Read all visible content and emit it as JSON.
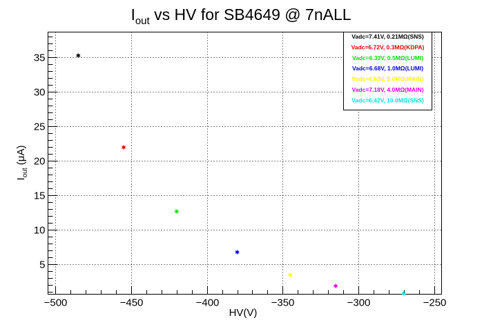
{
  "chart_data": {
    "type": "scatter",
    "title": {
      "main": "I",
      "sub": "out",
      "rest": " vs HV for SB4649 @ 7nALL"
    },
    "xlabel": "HV(V)",
    "ylabel": {
      "main": "I",
      "sub": "out",
      "rest": " (μA)"
    },
    "xlim": [
      -505,
      -245
    ],
    "ylim": [
      0.6,
      38.6
    ],
    "x_ticks": [
      -500,
      -450,
      -400,
      -350,
      -300,
      -250
    ],
    "x_tick_labels": [
      "−500",
      "−450",
      "−400",
      "−350",
      "−300",
      "−250"
    ],
    "y_ticks": [
      5,
      10,
      15,
      20,
      25,
      30,
      35
    ],
    "y_tick_labels": [
      "5",
      "10",
      "15",
      "20",
      "25",
      "30",
      "35"
    ],
    "grid": true,
    "legend_position": "top-right",
    "series": [
      {
        "name": "Vadc=7.41V, 0.21MΩ(SNS)",
        "color": "#000000",
        "x": [
          -485
        ],
        "y": [
          35.2
        ]
      },
      {
        "name": "Vadc=6.72V, 0.3MΩ(KDPA)",
        "color": "#e00000",
        "x": [
          -455
        ],
        "y": [
          21.9
        ]
      },
      {
        "name": "Vadc=6.33V, 0.5MΩ(LUMI)",
        "color": "#00e000",
        "x": [
          -420
        ],
        "y": [
          12.6
        ]
      },
      {
        "name": "Vadc=6.68V, 1.0MΩ(LUMI)",
        "color": "#0000e0",
        "x": [
          -380
        ],
        "y": [
          6.7
        ]
      },
      {
        "name": "Vadc=6.63V, 2.0MΩ(MAIN)",
        "color": "#ffff00",
        "x": [
          -345
        ],
        "y": [
          3.4
        ]
      },
      {
        "name": "Vadc=7.18V, 4.0MΩ(MAIN)",
        "color": "#e000e0",
        "x": [
          -315
        ],
        "y": [
          1.8
        ]
      },
      {
        "name": "Vadc=6.42V, 10.0MΩ(SNS)",
        "color": "#00e0e0",
        "x": [
          -270
        ],
        "y": [
          0.7
        ]
      }
    ]
  }
}
